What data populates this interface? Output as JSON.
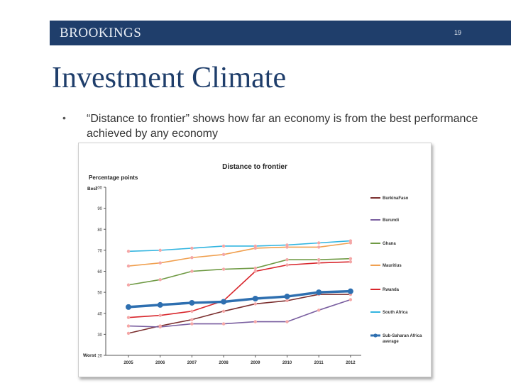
{
  "header": {
    "logo": "BROOKINGS",
    "page_number": "19"
  },
  "slide": {
    "title": "Investment Climate",
    "bullet": "“Distance to frontier” shows how far an economy is from the best performance achieved by any economy"
  },
  "chart_data": {
    "type": "line",
    "title": "Distance to frontier",
    "ylabel": "Percentage points",
    "ylim": [
      20,
      100
    ],
    "y_ticks": [
      20,
      30,
      40,
      50,
      60,
      70,
      80,
      90,
      100
    ],
    "y_top_label": "Best",
    "y_bottom_label": "Worst",
    "grid": false,
    "legend_position": "right",
    "categories": [
      "2005",
      "2006",
      "2007",
      "2008",
      "2009",
      "2010",
      "2011",
      "2012"
    ],
    "series": [
      {
        "name": "BurkinaFaso",
        "color": "#7b2f2f",
        "values": [
          30.5,
          34,
          37,
          41,
          44.5,
          46,
          49,
          49
        ]
      },
      {
        "name": "Burundi",
        "color": "#7a5fa0",
        "values": [
          34,
          33.5,
          35,
          35,
          36,
          36,
          41.5,
          46.5
        ]
      },
      {
        "name": "Ghana",
        "color": "#6f9a44",
        "values": [
          53.5,
          56,
          60,
          61,
          61.5,
          65.5,
          65.5,
          66
        ]
      },
      {
        "name": "Mauritius",
        "color": "#f0a050",
        "values": [
          62.5,
          64,
          66.5,
          68,
          71,
          71.5,
          71.5,
          73.5
        ]
      },
      {
        "name": "Rwanda",
        "color": "#d8262c",
        "values": [
          38,
          39,
          41,
          46,
          60,
          63,
          64,
          64.5
        ]
      },
      {
        "name": "South Africa",
        "color": "#33b5e0",
        "values": [
          69.5,
          70,
          71,
          72,
          72,
          72.5,
          73.5,
          74.5
        ]
      },
      {
        "name": "Sub-Saharan Africa average",
        "color": "#2e6fb0",
        "values": [
          43,
          44,
          45,
          45.5,
          47,
          48,
          50,
          50.5
        ]
      }
    ]
  }
}
